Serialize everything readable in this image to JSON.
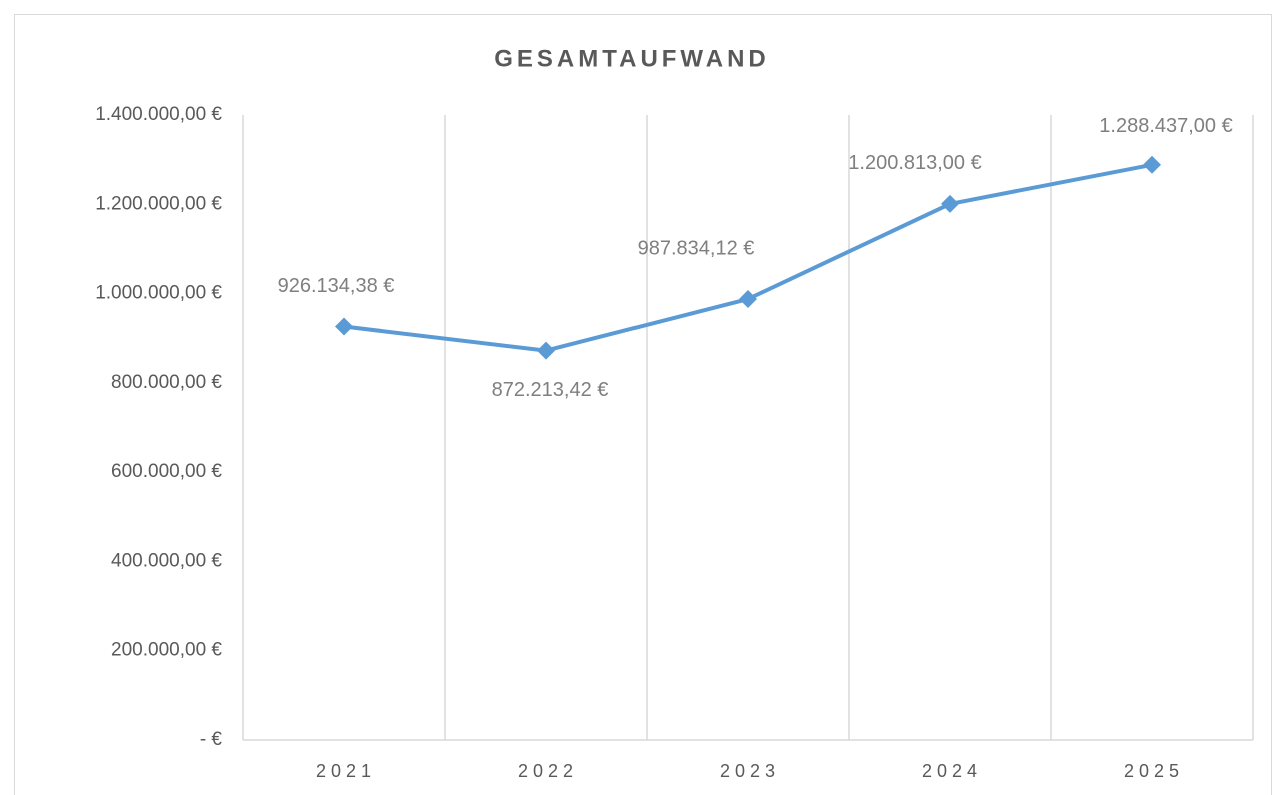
{
  "chart_data": {
    "type": "line",
    "title": "GESAMTAUFWAND",
    "categories": [
      "2021",
      "2022",
      "2023",
      "2024",
      "2025"
    ],
    "series": [
      {
        "name": "Gesamtaufwand",
        "color": "#5b9bd5",
        "values": [
          926134.38,
          872213.42,
          987834.12,
          1200813.0,
          1288437.0
        ],
        "value_labels": [
          "926.134,38 €",
          "872.213,42 €",
          "987.834,12 €",
          "1.200.813,00 €",
          "1.288.437,00 €"
        ]
      }
    ],
    "ylim": [
      0,
      1400000
    ],
    "yticks": [
      {
        "value": 0,
        "label": "-   €"
      },
      {
        "value": 200000,
        "label": "200.000,00 €"
      },
      {
        "value": 400000,
        "label": "400.000,00 €"
      },
      {
        "value": 600000,
        "label": "600.000,00 €"
      },
      {
        "value": 800000,
        "label": "800.000,00 €"
      },
      {
        "value": 1000000,
        "label": "1.000.000,00 €"
      },
      {
        "value": 1200000,
        "label": "1.200.000,00 €"
      },
      {
        "value": 1400000,
        "label": "1.400.000,00 €"
      }
    ],
    "grid": false
  }
}
